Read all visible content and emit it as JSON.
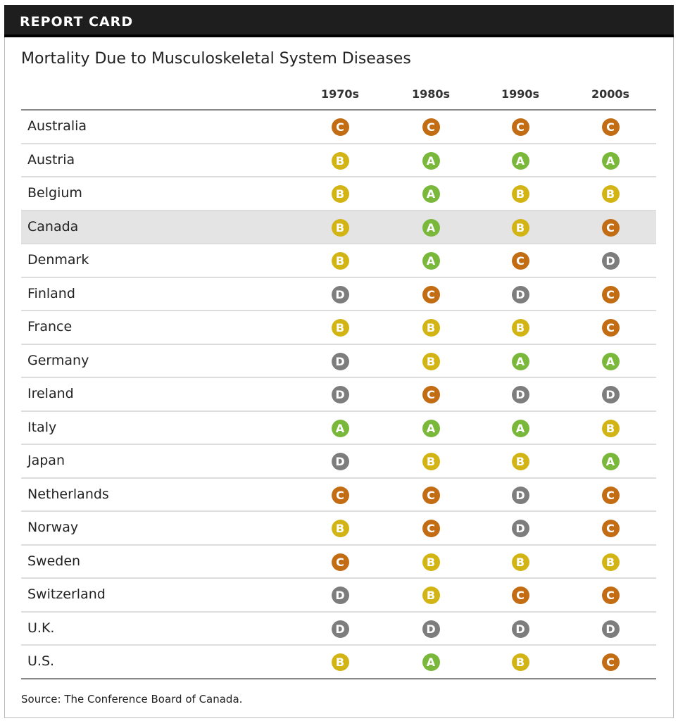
{
  "header": {
    "title": "REPORT CARD"
  },
  "chart_data": {
    "type": "table",
    "title": "Mortality Due to Musculoskeletal System Diseases",
    "columns": [
      "1970s",
      "1980s",
      "1990s",
      "2000s"
    ],
    "highlighted_row": "Canada",
    "rows": [
      {
        "country": "Australia",
        "grades": [
          "C",
          "C",
          "C",
          "C"
        ]
      },
      {
        "country": "Austria",
        "grades": [
          "B",
          "A",
          "A",
          "A"
        ]
      },
      {
        "country": "Belgium",
        "grades": [
          "B",
          "A",
          "B",
          "B"
        ]
      },
      {
        "country": "Canada",
        "grades": [
          "B",
          "A",
          "B",
          "C"
        ]
      },
      {
        "country": "Denmark",
        "grades": [
          "B",
          "A",
          "C",
          "D"
        ]
      },
      {
        "country": "Finland",
        "grades": [
          "D",
          "C",
          "D",
          "C"
        ]
      },
      {
        "country": "France",
        "grades": [
          "B",
          "B",
          "B",
          "C"
        ]
      },
      {
        "country": "Germany",
        "grades": [
          "D",
          "B",
          "A",
          "A"
        ]
      },
      {
        "country": "Ireland",
        "grades": [
          "D",
          "C",
          "D",
          "D"
        ]
      },
      {
        "country": "Italy",
        "grades": [
          "A",
          "A",
          "A",
          "B"
        ]
      },
      {
        "country": "Japan",
        "grades": [
          "D",
          "B",
          "B",
          "A"
        ]
      },
      {
        "country": "Netherlands",
        "grades": [
          "C",
          "C",
          "D",
          "C"
        ]
      },
      {
        "country": "Norway",
        "grades": [
          "B",
          "C",
          "D",
          "C"
        ]
      },
      {
        "country": "Sweden",
        "grades": [
          "C",
          "B",
          "B",
          "B"
        ]
      },
      {
        "country": "Switzerland",
        "grades": [
          "D",
          "B",
          "C",
          "C"
        ]
      },
      {
        "country": "U.K.",
        "grades": [
          "D",
          "D",
          "D",
          "D"
        ]
      },
      {
        "country": "U.S.",
        "grades": [
          "B",
          "A",
          "B",
          "C"
        ]
      }
    ],
    "grade_colors": {
      "A": "#7ab83c",
      "B": "#d2b514",
      "C": "#c26c14",
      "D": "#7d7d7d"
    }
  },
  "source": "Source: The Conference Board of Canada."
}
